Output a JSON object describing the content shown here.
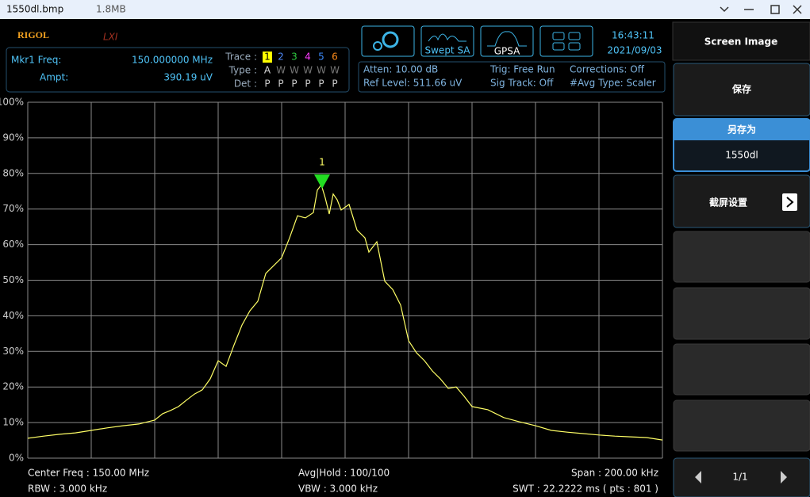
{
  "window": {
    "title": "1550dl.bmp",
    "size": "1.8MB"
  },
  "header": {
    "brand": "RIGOL",
    "lxi": "LXI",
    "modes": [
      "Swept SA",
      "GPSA"
    ],
    "time": "16:43:11",
    "date": "2021/09/03"
  },
  "marker_readout": {
    "freq_label": "Mkr1 Freq:",
    "freq_value": "150.000000 MHz",
    "ampt_label": "Ampt:",
    "ampt_value": "390.19 uV"
  },
  "trace_table": {
    "trace_label": "Trace :",
    "type_label": "Type :",
    "det_label": "Det :",
    "traces": [
      "1",
      "2",
      "3",
      "4",
      "5",
      "6"
    ],
    "colors": [
      "#ffff00",
      "#4f8cff",
      "#2ecc40",
      "#ff3cff",
      "#3c8cff",
      "#ff8c1a"
    ],
    "types": [
      "A",
      "W",
      "W",
      "W",
      "W",
      "W"
    ],
    "dets": [
      "P",
      "P",
      "P",
      "P",
      "P",
      "P"
    ]
  },
  "settings": [
    "Atten: 10.00 dB",
    "Ref Level: 511.66 uV",
    "Trig: Free Run",
    "Sig Track: Off",
    "Corrections: Off",
    "#Avg Type: Scaler"
  ],
  "chart_data": {
    "type": "line",
    "color": "#ffff66",
    "grid": true,
    "x": [
      0,
      20,
      40,
      60,
      80,
      100,
      120,
      140,
      160,
      170,
      180,
      190,
      200,
      210,
      220,
      230,
      240,
      250,
      260,
      270,
      280,
      290,
      300,
      310,
      320,
      330,
      340,
      350,
      360,
      365,
      370,
      375,
      380,
      385,
      390,
      395,
      405,
      415,
      425,
      430,
      440,
      450,
      460,
      470,
      480,
      490,
      500,
      510,
      520,
      530,
      540,
      550,
      560,
      580,
      600,
      620,
      640,
      660,
      680,
      700,
      720,
      740,
      760,
      780,
      800
    ],
    "values": [
      5.6,
      6.2,
      6.7,
      7.1,
      7.8,
      8.5,
      9.1,
      9.6,
      10.7,
      12.5,
      13.4,
      14.5,
      16.3,
      18.0,
      19.2,
      22.3,
      27.4,
      25.8,
      31.8,
      37.4,
      41.4,
      44.1,
      51.9,
      54.1,
      56.3,
      61.9,
      68.1,
      67.5,
      69.0,
      75.3,
      76.8,
      73.1,
      68.6,
      74.2,
      72.6,
      69.7,
      71.3,
      64.1,
      61.9,
      57.9,
      60.8,
      49.7,
      47.4,
      43.0,
      33.0,
      29.6,
      27.4,
      24.5,
      22.3,
      19.6,
      20.0,
      17.4,
      14.5,
      13.6,
      11.4,
      10.2,
      9.1,
      7.8,
      7.3,
      6.9,
      6.5,
      6.2,
      6.0,
      5.8,
      5.1
    ],
    "xlim": [
      0,
      800
    ],
    "xticks": [
      0,
      80,
      160,
      240,
      320,
      400,
      480,
      560,
      640,
      720,
      800
    ],
    "ylim": [
      0,
      100
    ],
    "yticks": [
      {
        "value": 0,
        "label": "0%"
      },
      {
        "value": 10,
        "label": "10%"
      },
      {
        "value": 20,
        "label": "20%"
      },
      {
        "value": 30,
        "label": "30%"
      },
      {
        "value": 40,
        "label": "40%"
      },
      {
        "value": 50,
        "label": "50%"
      },
      {
        "value": 60,
        "label": "60%"
      },
      {
        "value": 70,
        "label": "70%"
      },
      {
        "value": 80,
        "label": "80%"
      },
      {
        "value": 90,
        "label": "90%"
      },
      {
        "value": 100,
        "label": "100%"
      }
    ],
    "marker": {
      "label": "1",
      "x": 371,
      "y": 76.8
    }
  },
  "footer": [
    "Center Freq : 150.00 MHz",
    "RBW : 3.000 kHz",
    "Avg|Hold : 100/100",
    "VBW : 3.000 kHz",
    "Span : 200.00 kHz",
    "SWT : 22.2222 ms ( pts : 801 )"
  ],
  "menu": {
    "title": "Screen Image",
    "save": "保存",
    "save_as": "另存为",
    "save_as_value": "1550dl",
    "settings": "截屏设置",
    "page": "1/1"
  }
}
